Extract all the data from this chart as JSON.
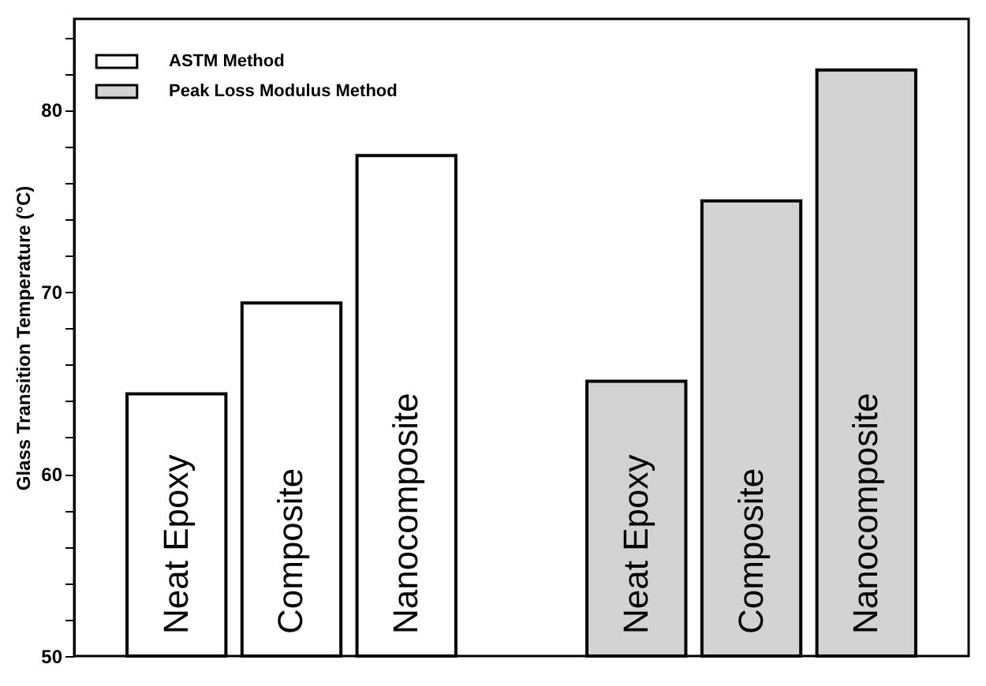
{
  "chart_data": {
    "type": "bar",
    "ylabel": "Glass Transition Temperature (°C)",
    "categories": [
      "Neat Epoxy",
      "Composite",
      "Nanocomposite",
      null,
      "Neat Epoxy",
      "Composite",
      "Nanocomposite"
    ],
    "series": [
      {
        "name": "ASTM Method",
        "color": "#ffffff",
        "values": [
          64.4,
          69.4,
          77.5,
          null,
          null,
          null,
          null
        ]
      },
      {
        "name": "Peak Loss Modulus Method",
        "color": "#d3d3d3",
        "values": [
          null,
          null,
          null,
          null,
          65.1,
          75.0,
          82.2
        ]
      }
    ],
    "ylim": [
      50,
      85
    ],
    "yticks": [
      50,
      {
        "value": 52,
        "label": null
      },
      {
        "value": 54,
        "label": null
      },
      {
        "value": 56,
        "label": null
      },
      {
        "value": 58,
        "label": null
      },
      60,
      {
        "value": 62,
        "label": null
      },
      {
        "value": 64,
        "label": null
      },
      {
        "value": 66,
        "label": null
      },
      {
        "value": 68,
        "label": null
      },
      70,
      {
        "value": 72,
        "label": null
      },
      {
        "value": 74,
        "label": null
      },
      {
        "value": 76,
        "label": null
      },
      {
        "value": 78,
        "label": null
      },
      80,
      {
        "value": 82,
        "label": null
      },
      {
        "value": 84,
        "label": null
      }
    ],
    "tick_labels": "y",
    "legend": "top left",
    "grid": false
  }
}
